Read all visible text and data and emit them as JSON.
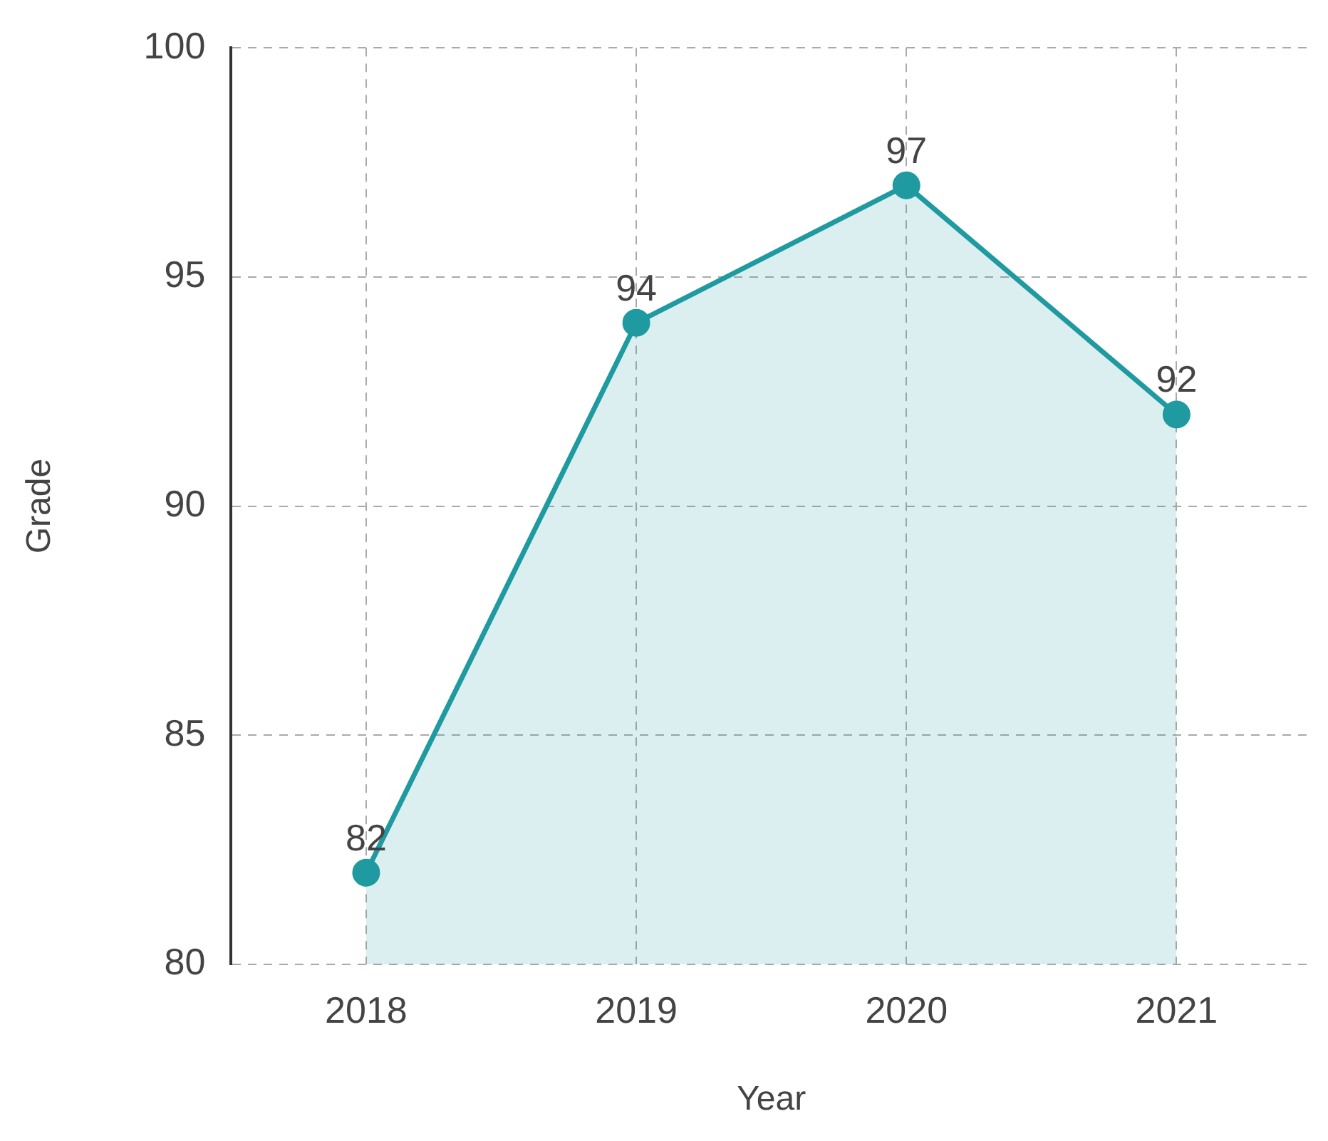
{
  "chart_data": {
    "type": "area",
    "xlabel": "Year",
    "ylabel": "Grade",
    "categories": [
      "2018",
      "2019",
      "2020",
      "2021"
    ],
    "series": [
      {
        "color": "#1f9aa0",
        "values": [
          82,
          94,
          97,
          92
        ]
      }
    ],
    "ylim": [
      80,
      100
    ],
    "yticks": [
      80,
      85,
      90,
      95,
      100
    ],
    "grid": true,
    "legend": false,
    "marker": "circle",
    "line_style": "solid",
    "data_labels": true
  }
}
